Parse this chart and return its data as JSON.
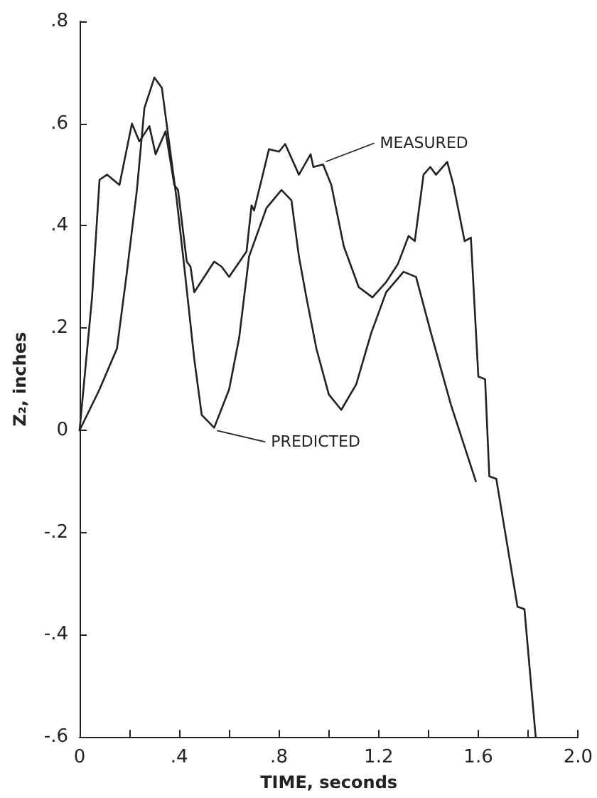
{
  "chart_data": {
    "type": "line",
    "xlabel": "TIME, seconds",
    "ylabel": "Z₂, inches",
    "xlim": [
      0,
      2.0
    ],
    "ylim": [
      -0.6,
      0.8
    ],
    "xticks": [
      {
        "value": 0,
        "label": "0"
      },
      {
        "value": 0.2,
        "label": null
      },
      {
        "value": 0.4,
        "label": ".4"
      },
      {
        "value": 0.6,
        "label": null
      },
      {
        "value": 0.8,
        "label": ".8"
      },
      {
        "value": 1.0,
        "label": null
      },
      {
        "value": 1.2,
        "label": "1.2"
      },
      {
        "value": 1.4,
        "label": null
      },
      {
        "value": 1.6,
        "label": "1.6"
      },
      {
        "value": 1.8,
        "label": null
      },
      {
        "value": 2.0,
        "label": "2.0"
      }
    ],
    "yticks": [
      {
        "value": -0.6,
        "label": "-.6"
      },
      {
        "value": -0.4,
        "label": "-.4"
      },
      {
        "value": -0.2,
        "label": "-.2"
      },
      {
        "value": 0,
        "label": "0"
      },
      {
        "value": 0.2,
        "label": ".2"
      },
      {
        "value": 0.4,
        "label": ".4"
      },
      {
        "value": 0.6,
        "label": ".6"
      },
      {
        "value": 0.8,
        "label": ".8"
      }
    ],
    "annotations": [
      {
        "text": "MEASURED",
        "x": 0.977,
        "y": 0.52
      },
      {
        "text": "PREDICTED",
        "x": 0.54,
        "y": 0.005
      }
    ],
    "grid": false,
    "marker": "none",
    "line_style": "solid",
    "series": [
      {
        "color": "#222222",
        "x": [
          0,
          0.05,
          0.08,
          0.11,
          0.16,
          0.21,
          0.24,
          0.28,
          0.305,
          0.345,
          0.38,
          0.395,
          0.43,
          0.445,
          0.46,
          0.54,
          0.57,
          0.6,
          0.67,
          0.69,
          0.7,
          0.76,
          0.8,
          0.825,
          0.88,
          0.927,
          0.938,
          0.977,
          1.01,
          1.06,
          1.12,
          1.175,
          1.23,
          1.277,
          1.32,
          1.345,
          1.38,
          1.407,
          1.43,
          1.475,
          1.5,
          1.545,
          1.57,
          1.6,
          1.627,
          1.644,
          1.672,
          1.757,
          1.785,
          1.83
        ],
        "values": [
          0,
          0.26,
          0.49,
          0.5,
          0.48,
          0.6,
          0.565,
          0.595,
          0.54,
          0.585,
          0.48,
          0.47,
          0.33,
          0.32,
          0.27,
          0.33,
          0.32,
          0.3,
          0.35,
          0.44,
          0.43,
          0.55,
          0.545,
          0.56,
          0.5,
          0.54,
          0.515,
          0.52,
          0.48,
          0.36,
          0.28,
          0.26,
          0.29,
          0.325,
          0.38,
          0.37,
          0.5,
          0.515,
          0.5,
          0.525,
          0.48,
          0.37,
          0.377,
          0.105,
          0.1,
          -0.09,
          -0.095,
          -0.345,
          -0.35,
          -0.6
        ]
      },
      {
        "color": "#222222",
        "x": [
          0,
          0.08,
          0.15,
          0.19,
          0.23,
          0.26,
          0.3,
          0.33,
          0.36,
          0.39,
          0.42,
          0.46,
          0.49,
          0.54,
          0.6,
          0.64,
          0.68,
          0.75,
          0.81,
          0.85,
          0.88,
          0.91,
          0.95,
          1.0,
          1.05,
          1.11,
          1.17,
          1.23,
          1.3,
          1.35,
          1.41,
          1.49,
          1.59
        ],
        "values": [
          0,
          0.08,
          0.16,
          0.31,
          0.47,
          0.63,
          0.69,
          0.67,
          0.56,
          0.45,
          0.32,
          0.14,
          0.03,
          0.005,
          0.08,
          0.18,
          0.34,
          0.435,
          0.47,
          0.45,
          0.34,
          0.26,
          0.16,
          0.07,
          0.04,
          0.09,
          0.19,
          0.27,
          0.31,
          0.3,
          0.19,
          0.05,
          -0.1
        ]
      }
    ]
  }
}
